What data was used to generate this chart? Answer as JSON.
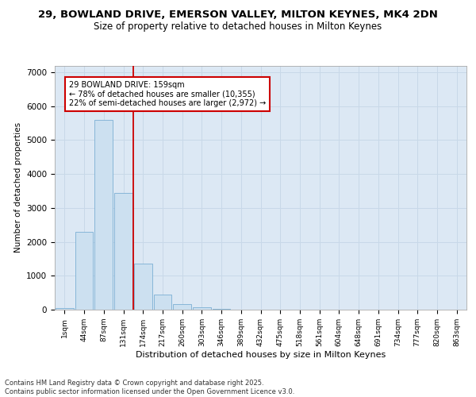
{
  "title_line1": "29, BOWLAND DRIVE, EMERSON VALLEY, MILTON KEYNES, MK4 2DN",
  "title_line2": "Size of property relative to detached houses in Milton Keynes",
  "xlabel": "Distribution of detached houses by size in Milton Keynes",
  "ylabel": "Number of detached properties",
  "categories": [
    "1sqm",
    "44sqm",
    "87sqm",
    "131sqm",
    "174sqm",
    "217sqm",
    "260sqm",
    "303sqm",
    "346sqm",
    "389sqm",
    "432sqm",
    "475sqm",
    "518sqm",
    "561sqm",
    "604sqm",
    "648sqm",
    "691sqm",
    "734sqm",
    "777sqm",
    "820sqm",
    "863sqm"
  ],
  "values": [
    50,
    2300,
    5600,
    3450,
    1350,
    450,
    175,
    60,
    25,
    5,
    2,
    1,
    0,
    0,
    0,
    0,
    0,
    0,
    0,
    0,
    0
  ],
  "bar_color": "#cce0f0",
  "bar_edge_color": "#7bafd4",
  "grid_color": "#c8d8e8",
  "background_color": "#dce8f4",
  "vline_color": "#cc0000",
  "vline_pos": 3.5,
  "annotation_text": "29 BOWLAND DRIVE: 159sqm\n← 78% of detached houses are smaller (10,355)\n22% of semi-detached houses are larger (2,972) →",
  "annotation_box_color": "#ffffff",
  "annotation_box_edge": "#cc0000",
  "footer_text": "Contains HM Land Registry data © Crown copyright and database right 2025.\nContains public sector information licensed under the Open Government Licence v3.0.",
  "fig_color": "#ffffff",
  "ylim": [
    0,
    7200
  ],
  "yticks": [
    0,
    1000,
    2000,
    3000,
    4000,
    5000,
    6000,
    7000
  ]
}
